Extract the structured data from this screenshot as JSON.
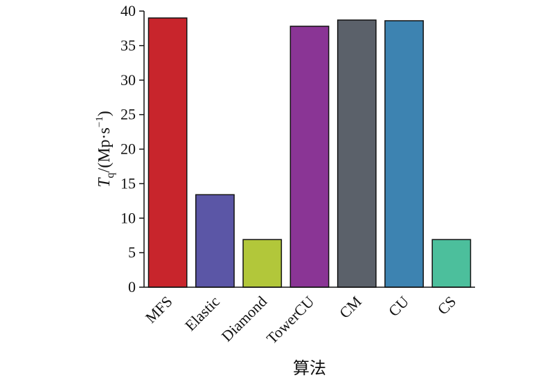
{
  "chart_data": {
    "type": "bar",
    "categories": [
      "MFS",
      "Elastic",
      "Diamond",
      "TowerCU",
      "CM",
      "CU",
      "CS"
    ],
    "values": [
      39.0,
      13.4,
      6.9,
      37.8,
      38.7,
      38.6,
      6.9
    ],
    "colors": [
      "#c8252c",
      "#5b56a6",
      "#b2c73a",
      "#8a3595",
      "#5b616a",
      "#3d83b1",
      "#4cbf9c"
    ],
    "xlabel": "算法",
    "ylabel_main": "T",
    "ylabel_sub": "q",
    "ylabel_rest": "/(Mp·s",
    "ylabel_sup": "−1",
    "ylabel_close": ")",
    "ylim": [
      0,
      40
    ],
    "yticks": [
      0,
      5,
      10,
      15,
      20,
      25,
      30,
      35,
      40
    ],
    "grid": false,
    "legend": "none"
  }
}
